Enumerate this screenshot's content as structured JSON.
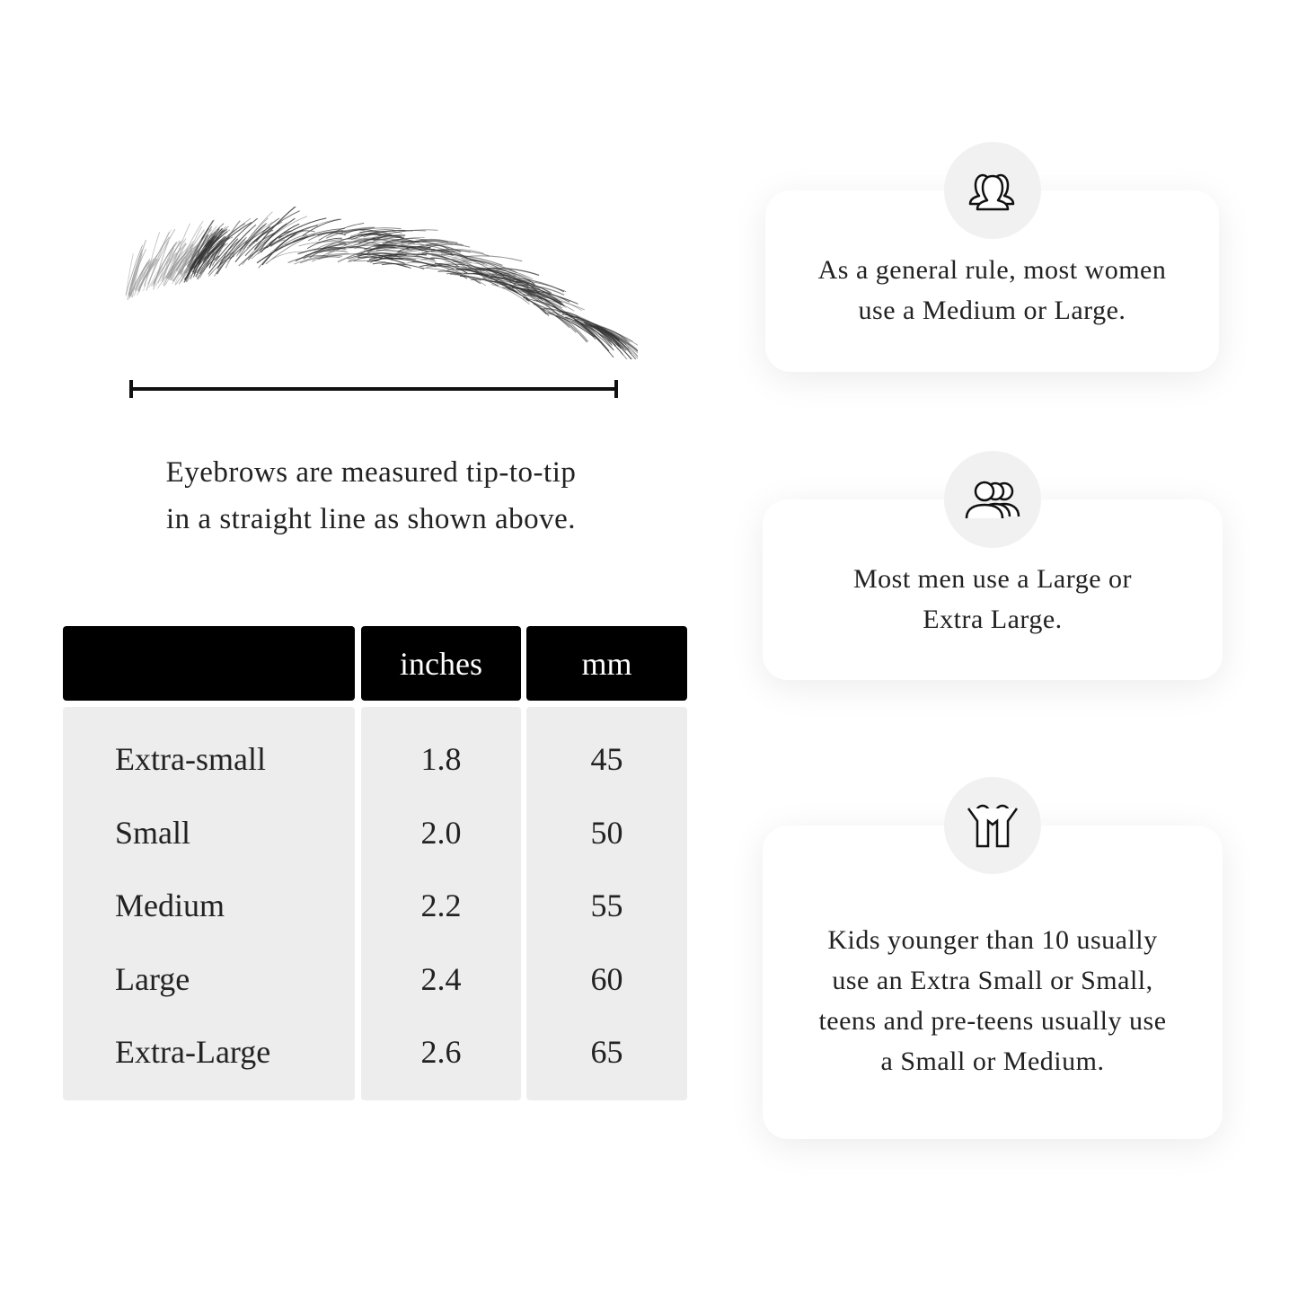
{
  "left": {
    "caption_line1": "Eyebrows are measured tip-to-tip",
    "caption_line2": "in a straight line as shown above."
  },
  "table": {
    "headers": [
      "",
      "inches",
      "mm"
    ],
    "rows": [
      {
        "size": "Extra-small",
        "inches": "1.8",
        "mm": "45"
      },
      {
        "size": "Small",
        "inches": "2.0",
        "mm": "50"
      },
      {
        "size": "Medium",
        "inches": "2.2",
        "mm": "55"
      },
      {
        "size": "Large",
        "inches": "2.4",
        "mm": "60"
      },
      {
        "size": "Extra-Large",
        "inches": "2.6",
        "mm": "65"
      }
    ]
  },
  "cards": [
    {
      "icon": "women-group-icon",
      "line1": "As a general rule, most women",
      "line2": "use a Medium or Large."
    },
    {
      "icon": "men-group-icon",
      "line1": "Most men use a Large or",
      "line2": "Extra Large."
    },
    {
      "icon": "kids-icon",
      "text": "Kids younger than 10 usually use an Extra Small or Small, teens and pre-teens usually use a Small or Medium."
    }
  ],
  "colors": {
    "header_bg": "#000000",
    "body_bg": "#ededed",
    "icon_circle": "#f1f1f1"
  }
}
